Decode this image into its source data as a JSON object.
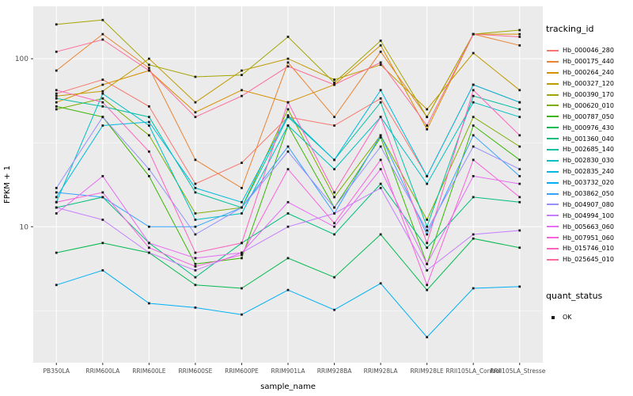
{
  "legend": {
    "tracking_title": "tracking_id",
    "quant_title": "quant_status",
    "quant_items": [
      {
        "label": "OK"
      }
    ]
  },
  "chart_data": {
    "type": "line",
    "title": "",
    "xlabel": "sample_name",
    "ylabel": "FPKM + 1",
    "yscale": "log10",
    "ylim": [
      1.55,
      205
    ],
    "yticks": [
      10,
      100
    ],
    "minor_gridlines": [
      3.162,
      31.62
    ],
    "panel_bg": "#EBEBEB",
    "grid_color": "#FFFFFF",
    "point_color": "#1A1A1A",
    "axis_text_color": "#4D4D4D",
    "legend_position": "right",
    "categories": [
      "PB350LA",
      "RRIM600LA",
      "RRIM600LE",
      "RRIM600SE",
      "RRIM600PE",
      "RRIM901LA",
      "RRIM928BA",
      "RRIM928LA",
      "RRIM928LE",
      "RRII105LA_Control",
      "RRII105LA_Stressed"
    ],
    "series": [
      {
        "name": "Hb_000046_280",
        "color": "#F8766D",
        "values": [
          62,
          75,
          52,
          18,
          24,
          45,
          40,
          58,
          20,
          70,
          55
        ]
      },
      {
        "name": "Hb_000175_440",
        "color": "#EA8331",
        "values": [
          85,
          140,
          88,
          25,
          17,
          95,
          45,
          110,
          45,
          140,
          120
        ]
      },
      {
        "name": "Hb_000264_240",
        "color": "#D89000",
        "values": [
          55,
          70,
          85,
          48,
          65,
          55,
          70,
          120,
          38,
          140,
          140
        ]
      },
      {
        "name": "Hb_000327_120",
        "color": "#C09B00",
        "values": [
          60,
          64,
          100,
          55,
          85,
          100,
          75,
          92,
          50,
          108,
          65
        ]
      },
      {
        "name": "Hb_000390_170",
        "color": "#A3A500",
        "values": [
          160,
          170,
          92,
          78,
          80,
          135,
          72,
          128,
          45,
          140,
          148
        ]
      },
      {
        "name": "Hb_000620_010",
        "color": "#7CAE00",
        "values": [
          50,
          58,
          35,
          12,
          13,
          50,
          15,
          35,
          11,
          45,
          30
        ]
      },
      {
        "name": "Hb_000787_050",
        "color": "#39B600",
        "values": [
          52,
          45,
          20,
          6,
          6.5,
          40,
          13,
          34,
          6,
          40,
          25
        ]
      },
      {
        "name": "Hb_000976_430",
        "color": "#00BB4E",
        "values": [
          7,
          8,
          7,
          4.5,
          4.3,
          6.5,
          5,
          9,
          4.2,
          8.5,
          7.5
        ]
      },
      {
        "name": "Hb_001360_040",
        "color": "#00BF7D",
        "values": [
          13,
          15,
          8,
          5,
          8,
          12,
          9,
          18,
          7.5,
          15,
          14
        ]
      },
      {
        "name": "Hb_002685_140",
        "color": "#00C1A3",
        "values": [
          58,
          52,
          45,
          16,
          13,
          45,
          25,
          55,
          10,
          60,
          50
        ]
      },
      {
        "name": "Hb_002830_030",
        "color": "#00BFC4",
        "values": [
          14,
          62,
          40,
          11,
          12,
          40,
          22,
          45,
          18,
          55,
          45
        ]
      },
      {
        "name": "Hb_002835_240",
        "color": "#00BAE0",
        "values": [
          15,
          40,
          42,
          17,
          14,
          46,
          25,
          65,
          20,
          70,
          55
        ]
      },
      {
        "name": "Hb_003732_020",
        "color": "#00B0F6",
        "values": [
          4.5,
          5.5,
          3.5,
          3.3,
          3.0,
          4.2,
          3.2,
          4.6,
          2.2,
          4.3,
          4.4
        ]
      },
      {
        "name": "Hb_003862_050",
        "color": "#35A2FF",
        "values": [
          16,
          15,
          10,
          10,
          13,
          30,
          12,
          35,
          9,
          35,
          20
        ]
      },
      {
        "name": "Hb_004907_080",
        "color": "#9590FF",
        "values": [
          17,
          45,
          22,
          9,
          13,
          28,
          13,
          30,
          9.5,
          30,
          22
        ]
      },
      {
        "name": "Hb_004994_100",
        "color": "#C77CFF",
        "values": [
          13,
          11,
          7,
          5.5,
          7,
          10,
          12,
          17,
          5.5,
          9,
          9.5
        ]
      },
      {
        "name": "Hb_005663_060",
        "color": "#E76BF3",
        "values": [
          12,
          20,
          8,
          6.5,
          7,
          14,
          10,
          22,
          6,
          20,
          18
        ]
      },
      {
        "name": "Hb_007951_060",
        "color": "#FA62DB",
        "values": [
          14,
          16,
          7.5,
          5.8,
          6.8,
          22,
          10.5,
          25,
          4.5,
          25,
          15
        ]
      },
      {
        "name": "Hb_015746_010",
        "color": "#FF62BC",
        "values": [
          65,
          55,
          28,
          7,
          8,
          55,
          16,
          45,
          8,
          65,
          35
        ]
      },
      {
        "name": "Hb_025645_010",
        "color": "#FF6A98",
        "values": [
          110,
          130,
          85,
          45,
          60,
          90,
          70,
          95,
          40,
          140,
          135
        ]
      }
    ]
  }
}
